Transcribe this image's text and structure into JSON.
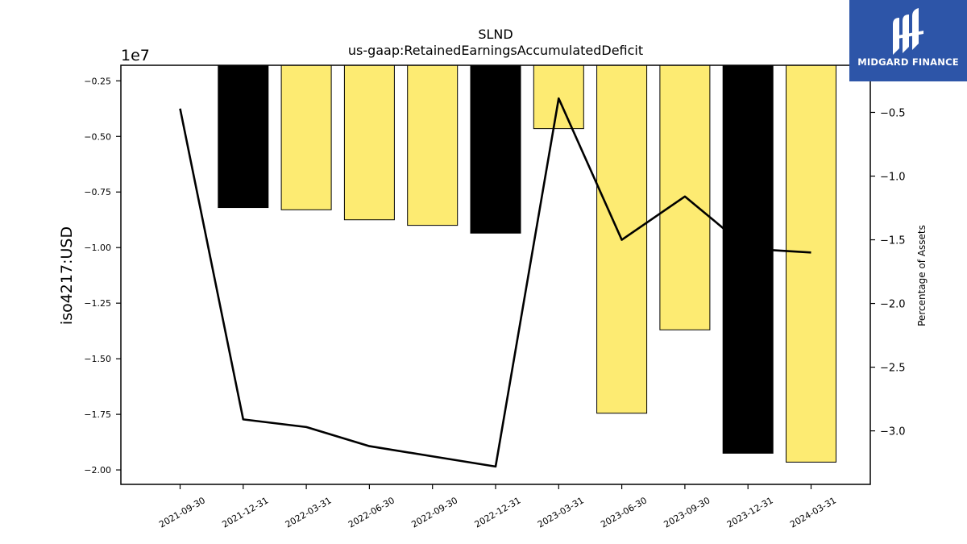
{
  "chart_data": {
    "type": "bar",
    "title": "SLND",
    "subtitle": "us-gaap:RetainedEarningsAccumulatedDeficit",
    "ylabel": "iso4217:USD",
    "y2label": "Percentage of Assets",
    "offset_label": "1e7",
    "categories": [
      "2021-09-30",
      "2021-12-31",
      "2022-03-31",
      "2022-06-30",
      "2022-09-30",
      "2022-12-31",
      "2023-03-31",
      "2023-06-30",
      "2023-09-30",
      "2023-12-31",
      "2024-03-31"
    ],
    "series": [
      {
        "axis": "left",
        "type": "bar",
        "values": [
          null,
          -8200000,
          -8300000,
          -8750000,
          -9000000,
          -9350000,
          -4650000,
          -17450000,
          -13700000,
          -19250000,
          -19650000
        ],
        "colors": [
          null,
          "#000000",
          "#fdeb72",
          "#fdeb72",
          "#fdeb72",
          "#000000",
          "#fdeb72",
          "#fdeb72",
          "#fdeb72",
          "#000000",
          "#fdeb72"
        ]
      },
      {
        "axis": "right",
        "type": "line",
        "values": [
          -0.47,
          -2.91,
          -2.97,
          -3.12,
          -3.2,
          -3.28,
          -0.39,
          -1.5,
          -1.16,
          -1.57,
          -1.6
        ]
      }
    ],
    "ylim": [
      -20650000,
      -1800000
    ],
    "yticks": [
      -2.0,
      -1.75,
      -1.5,
      -1.25,
      -1.0,
      -0.75,
      -0.5,
      -0.25
    ],
    "yticklabels": [
      "−2.00",
      "−1.75",
      "−1.50",
      "−1.25",
      "−1.00",
      "−0.75",
      "−0.50",
      "−0.25"
    ],
    "y2lim": [
      -3.42,
      -0.13
    ],
    "y2ticks": [
      -3.0,
      -2.5,
      -2.0,
      -1.5,
      -1.0,
      -0.5
    ],
    "y2ticklabels": [
      "−3.0",
      "−2.5",
      "−2.0",
      "−1.5",
      "−1.0",
      "−0.5"
    ],
    "grid": false,
    "line_color": "#000000",
    "bar_edge_color": "#000000"
  },
  "logo": {
    "text": "MIDGARD FINANCE",
    "background": "#2d55a8"
  }
}
